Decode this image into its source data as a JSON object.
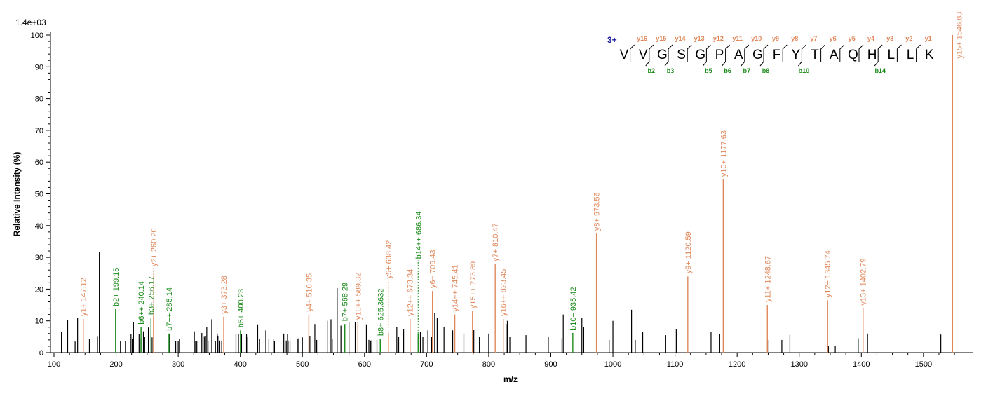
{
  "chart_data": {
    "type": "bar",
    "scale_label": "1.4e+03",
    "xlabel": "m/z",
    "ylabel": "Relative  Intensity (%)",
    "xlim": [
      95,
      1580
    ],
    "ylim": [
      0,
      100
    ],
    "xticks": [
      100,
      200,
      300,
      400,
      500,
      600,
      700,
      800,
      900,
      1000,
      1100,
      1200,
      1300,
      1400,
      1500
    ],
    "yticks": [
      0,
      10,
      20,
      30,
      40,
      50,
      60,
      70,
      80,
      90,
      100
    ],
    "grid": false,
    "colors": {
      "y_ion": "#e0875a",
      "b_ion": "#1a8a1a",
      "unassigned": "#000000",
      "charge": "#1a1a9a"
    },
    "annotated_peaks": [
      {
        "mz": 147.12,
        "i": 10.6,
        "type": "y",
        "label": "y1+ 147.12"
      },
      {
        "mz": 199.15,
        "i": 13.7,
        "type": "b",
        "label": "b2+ 199.15"
      },
      {
        "mz": 240.14,
        "i": 8.0,
        "type": "b",
        "label": "b6++ 240.14"
      },
      {
        "mz": 256.17,
        "i": 11.0,
        "type": "b",
        "label": "b3+ 256.17"
      },
      {
        "mz": 260.2,
        "i": 11.2,
        "type": "y",
        "label": "y2+ 260.20"
      },
      {
        "mz": 285.14,
        "i": 6.0,
        "type": "b",
        "label": "b7++ 285.14"
      },
      {
        "mz": 373.28,
        "i": 11.3,
        "type": "y",
        "label": "y3+ 373.28"
      },
      {
        "mz": 400.23,
        "i": 7.0,
        "type": "b",
        "label": "b5+ 400.23"
      },
      {
        "mz": 510.35,
        "i": 12.0,
        "type": "y",
        "label": "y4+ 510.35"
      },
      {
        "mz": 568.29,
        "i": 9.0,
        "type": "b",
        "label": "b7+ 568.29"
      },
      {
        "mz": 589.32,
        "i": 9.5,
        "type": "y",
        "label": "y10++ 589.32"
      },
      {
        "mz": 625.3632,
        "i": 4.4,
        "type": "b",
        "label": "b8+ 625.3632"
      },
      {
        "mz": 638.42,
        "i": 6.0,
        "type": "y",
        "label": "y5+ 638.42"
      },
      {
        "mz": 673.34,
        "i": 10.6,
        "type": "y",
        "label": "y12++ 673.34"
      },
      {
        "mz": 686.34,
        "i": 6.0,
        "type": "b",
        "label": "b14++ 686.34"
      },
      {
        "mz": 709.43,
        "i": 19.4,
        "type": "y",
        "label": "y6+ 709.43"
      },
      {
        "mz": 745.41,
        "i": 12.0,
        "type": "y",
        "label": "y14++ 745.41"
      },
      {
        "mz": 773.89,
        "i": 13.0,
        "type": "y",
        "label": "y15++ 773.89"
      },
      {
        "mz": 810.47,
        "i": 27.8,
        "type": "y",
        "label": "y7+ 810.47"
      },
      {
        "mz": 823.45,
        "i": 10.6,
        "type": "y",
        "label": "y16++ 823.45"
      },
      {
        "mz": 935.42,
        "i": 6.2,
        "type": "b",
        "label": "b10+ 935.42"
      },
      {
        "mz": 973.56,
        "i": 37.5,
        "type": "y",
        "label": "y8+ 973.56"
      },
      {
        "mz": 1120.59,
        "i": 24.0,
        "type": "y",
        "label": "y9+ 1120.59"
      },
      {
        "mz": 1177.63,
        "i": 54.5,
        "type": "y",
        "label": "y10+ 1177.63"
      },
      {
        "mz": 1248.67,
        "i": 15.0,
        "type": "y",
        "label": "y11+ 1248.67"
      },
      {
        "mz": 1345.74,
        "i": 16.5,
        "type": "y",
        "label": "y12+ 1345.74"
      },
      {
        "mz": 1402.79,
        "i": 14.0,
        "type": "y",
        "label": "y13+ 1402.79"
      },
      {
        "mz": 1546.83,
        "i": 100,
        "type": "y",
        "label": "y15+ 1546.83"
      }
    ],
    "unassigned_peaks": [
      [
        112,
        6.5
      ],
      [
        122,
        10.3
      ],
      [
        134,
        3.5
      ],
      [
        138,
        11
      ],
      [
        157,
        4.3
      ],
      [
        170,
        5.2
      ],
      [
        173,
        31.8
      ],
      [
        207,
        3.6
      ],
      [
        215,
        3.6
      ],
      [
        224,
        5.8
      ],
      [
        226,
        4.3
      ],
      [
        227,
        5
      ],
      [
        228,
        9.5
      ],
      [
        237,
        5.8
      ],
      [
        240,
        4.3
      ],
      [
        244,
        6.7
      ],
      [
        246,
        5
      ],
      [
        252,
        7.9
      ],
      [
        258,
        4.8
      ],
      [
        286,
        5.8
      ],
      [
        296,
        3.6
      ],
      [
        300,
        3.6
      ],
      [
        302,
        4.3
      ],
      [
        326,
        6.7
      ],
      [
        328,
        3.6
      ],
      [
        330,
        3.6
      ],
      [
        338,
        6.2
      ],
      [
        342,
        5.2
      ],
      [
        344,
        5.3
      ],
      [
        346,
        8
      ],
      [
        348,
        3.8
      ],
      [
        354,
        10.5
      ],
      [
        360,
        3.6
      ],
      [
        363,
        6
      ],
      [
        364,
        5.3
      ],
      [
        367,
        3.8
      ],
      [
        370,
        3.8
      ],
      [
        393,
        6
      ],
      [
        397,
        5.8
      ],
      [
        402,
        5.8
      ],
      [
        410,
        5.8
      ],
      [
        412,
        5
      ],
      [
        428,
        8.9
      ],
      [
        431,
        4.3
      ],
      [
        441,
        7
      ],
      [
        446,
        4.3
      ],
      [
        453,
        4.3
      ],
      [
        455,
        3.6
      ],
      [
        470,
        6
      ],
      [
        474,
        3.8
      ],
      [
        476,
        5.8
      ],
      [
        477,
        3.8
      ],
      [
        480,
        3.8
      ],
      [
        492,
        4.3
      ],
      [
        494,
        4.5
      ],
      [
        500,
        4.8
      ],
      [
        512,
        5.3
      ],
      [
        520,
        9
      ],
      [
        523,
        4
      ],
      [
        540,
        10
      ],
      [
        546,
        10.5
      ],
      [
        548,
        4.2
      ],
      [
        556,
        20.3
      ],
      [
        562,
        8.5
      ],
      [
        575,
        9.5
      ],
      [
        585,
        9.5
      ],
      [
        603,
        8.9
      ],
      [
        607,
        4
      ],
      [
        610,
        3.8
      ],
      [
        612,
        4
      ],
      [
        620,
        4
      ],
      [
        652,
        8
      ],
      [
        655,
        5
      ],
      [
        663,
        7.5
      ],
      [
        690,
        6.5
      ],
      [
        694,
        5
      ],
      [
        702,
        7
      ],
      [
        708,
        5
      ],
      [
        713,
        12.5
      ],
      [
        717,
        11
      ],
      [
        728,
        8
      ],
      [
        742,
        7
      ],
      [
        760,
        6
      ],
      [
        776,
        7.2
      ],
      [
        785,
        5
      ],
      [
        800,
        6
      ],
      [
        828,
        9
      ],
      [
        830,
        10
      ],
      [
        834,
        5
      ],
      [
        860,
        5.5
      ],
      [
        896,
        5
      ],
      [
        918,
        4.5
      ],
      [
        920,
        12
      ],
      [
        950,
        11
      ],
      [
        953,
        8
      ],
      [
        974,
        10
      ],
      [
        994,
        4
      ],
      [
        1000,
        10
      ],
      [
        1030,
        13.5
      ],
      [
        1036,
        4
      ],
      [
        1048,
        6.5
      ],
      [
        1085,
        5.5
      ],
      [
        1102,
        7.5
      ],
      [
        1158,
        6.5
      ],
      [
        1172,
        5.8
      ],
      [
        1178,
        6.5
      ],
      [
        1249,
        4
      ],
      [
        1272,
        4
      ],
      [
        1285,
        5.6
      ],
      [
        1345,
        2
      ],
      [
        1347,
        2.2
      ],
      [
        1358,
        2.2
      ],
      [
        1395,
        4.5
      ],
      [
        1410,
        6
      ],
      [
        1528,
        5.7
      ]
    ],
    "sequence": {
      "charge": "3+",
      "residues": [
        "V",
        "V",
        "G",
        "S",
        "G",
        "P",
        "A",
        "G",
        "F",
        "Y",
        "T",
        "A",
        "Q",
        "H",
        "L",
        "L",
        "K"
      ],
      "y_ions": [
        "y16",
        "y15",
        "y14",
        "y13",
        "y12",
        "y11",
        "y10",
        "y9",
        "y8",
        "y7",
        "y6",
        "y5",
        "y4",
        "y3",
        "y2",
        "y1"
      ],
      "b_ions": {
        "2": "b2",
        "3": "b3",
        "5": "b5",
        "6": "b6",
        "7": "b7",
        "8": "b8",
        "10": "b10",
        "14": "b14"
      }
    }
  }
}
